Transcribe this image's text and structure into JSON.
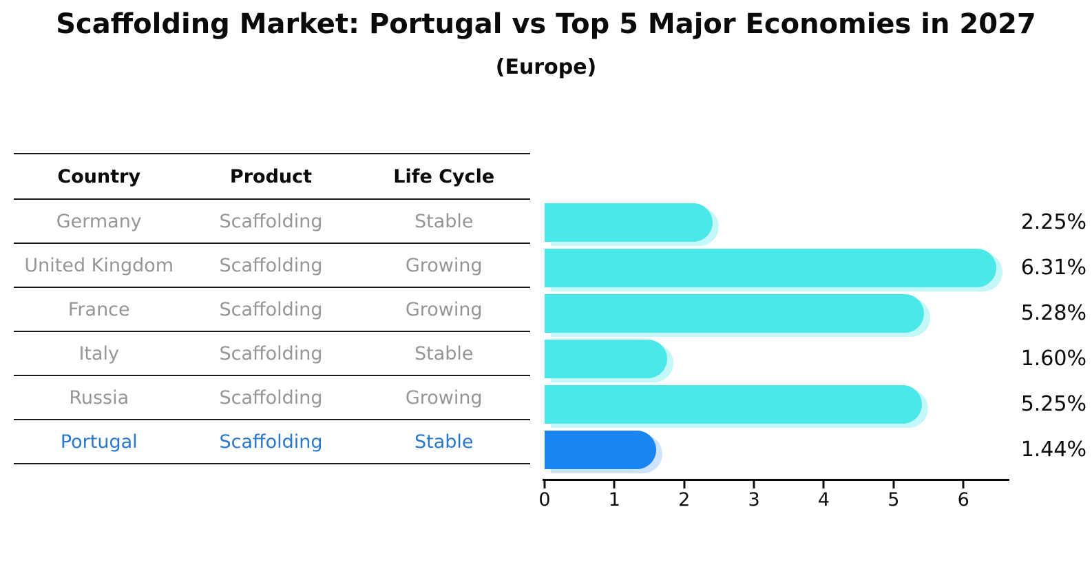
{
  "title": "Scaffolding Market: Portugal vs Top 5 Major Economies in 2027",
  "subtitle": "(Europe)",
  "table": {
    "headers": [
      "Country",
      "Product",
      "Life Cycle"
    ],
    "rows": [
      {
        "country": "Germany",
        "product": "Scaffolding",
        "life_cycle": "Stable",
        "highlighted": false
      },
      {
        "country": "United Kingdom",
        "product": "Scaffolding",
        "life_cycle": "Growing",
        "highlighted": false
      },
      {
        "country": "France",
        "product": "Scaffolding",
        "life_cycle": "Growing",
        "highlighted": false
      },
      {
        "country": "Italy",
        "product": "Scaffolding",
        "life_cycle": "Stable",
        "highlighted": false
      },
      {
        "country": "Russia",
        "product": "Scaffolding",
        "life_cycle": "Growing",
        "highlighted": false
      },
      {
        "country": "Portugal",
        "product": "Scaffolding",
        "life_cycle": "Stable",
        "highlighted": true
      }
    ]
  },
  "chart_data": {
    "type": "bar",
    "orientation": "horizontal",
    "title": "Scaffolding Market: Portugal vs Top 5 Major Economies in 2027",
    "subtitle": "(Europe)",
    "categories": [
      "Germany",
      "United Kingdom",
      "France",
      "Italy",
      "Russia",
      "Portugal"
    ],
    "values": [
      2.25,
      6.31,
      5.28,
      1.6,
      5.25,
      1.44
    ],
    "value_labels": [
      "2.25%",
      "6.31%",
      "5.28%",
      "1.60%",
      "5.25%",
      "1.44%"
    ],
    "x_ticks": [
      0,
      1,
      2,
      3,
      4,
      5,
      6
    ],
    "xlim": [
      0,
      6.6
    ],
    "grid": false,
    "legend": "none",
    "bar_color": "#4ae8e8",
    "highlight_color": "#1a85f0",
    "highlight_index": 5
  },
  "colors": {
    "background": "#ffffff",
    "bar_cyan": "#4ae8e8",
    "bar_blue": "#1a85f0",
    "highlight_text": "#2878cc",
    "table_text_gray": "#969696",
    "line_black": "#1a1a1a"
  }
}
